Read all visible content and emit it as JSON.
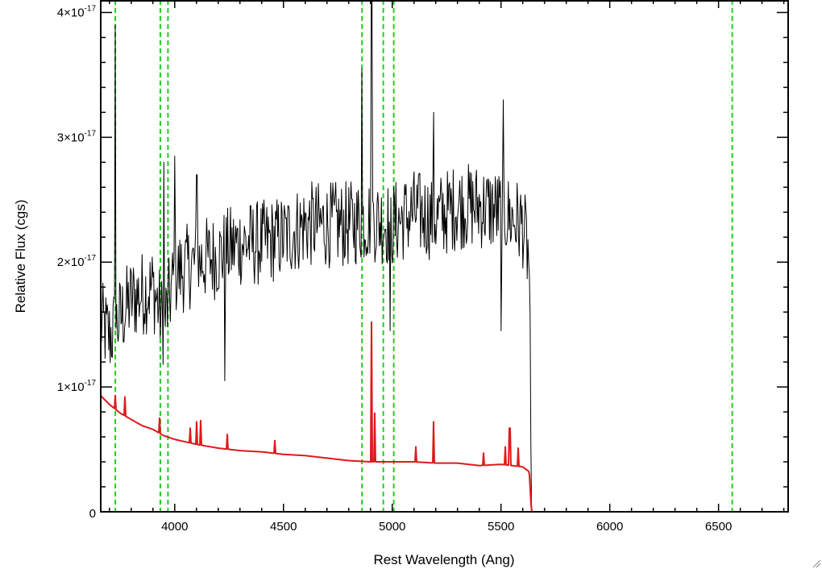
{
  "chart_data": {
    "type": "line",
    "xlabel": "Rest Wavelength (Ang)",
    "ylabel": "Relative Flux (cgs)",
    "xlim": [
      3660,
      6820
    ],
    "ylim": [
      0,
      4.1
    ],
    "y_unit_exponent": "-17",
    "x_ticks": [
      {
        "value": 4000,
        "label": "4000"
      },
      {
        "value": 4500,
        "label": "4500"
      },
      {
        "value": 5000,
        "label": "5000"
      },
      {
        "value": 5500,
        "label": "5500"
      },
      {
        "value": 6000,
        "label": "6000"
      },
      {
        "value": 6500,
        "label": "6500"
      }
    ],
    "y_ticks": [
      {
        "value": 0,
        "label": "0"
      },
      {
        "value": 1,
        "mant": "1",
        "label": "1×10-17"
      },
      {
        "value": 2,
        "mant": "2",
        "label": "2×10-17"
      },
      {
        "value": 3,
        "mant": "3",
        "label": "3×10-17"
      },
      {
        "value": 4,
        "mant": "4",
        "label": "4×10-17"
      }
    ],
    "vlines": [
      3727,
      3934,
      3969,
      4861,
      4959,
      5007,
      6563
    ],
    "series": [
      {
        "role": "spectrum",
        "color": "#000000",
        "x": [
          3665,
          3700,
          3750,
          3800,
          3850,
          3900,
          3950,
          4000,
          4100,
          4200,
          4300,
          4400,
          4500,
          4600,
          4700,
          4800,
          4900,
          5000,
          5100,
          5200,
          5300,
          5400,
          5500,
          5600,
          5630,
          5640,
          6820
        ],
        "y": [
          1.5,
          1.4,
          1.55,
          1.7,
          1.75,
          1.8,
          1.5,
          1.9,
          2.0,
          2.05,
          2.15,
          2.15,
          2.2,
          2.3,
          2.3,
          2.3,
          2.35,
          2.3,
          2.4,
          2.35,
          2.45,
          2.45,
          2.4,
          2.3,
          2.0,
          0.0,
          0.0
        ],
        "noise_amplitude": 0.35,
        "spikes": [
          {
            "x": 3727,
            "y": 3.9
          },
          {
            "x": 3950,
            "y": 2.8
          },
          {
            "x": 4000,
            "y": 2.85
          },
          {
            "x": 4102,
            "y": 2.7
          },
          {
            "x": 4230,
            "y": 1.05
          },
          {
            "x": 4861,
            "y": 3.55
          },
          {
            "x": 4905,
            "y": 4.1
          },
          {
            "x": 4990,
            "y": 1.45
          },
          {
            "x": 5190,
            "y": 3.2
          },
          {
            "x": 5500,
            "y": 1.45
          },
          {
            "x": 5510,
            "y": 3.3
          }
        ]
      },
      {
        "role": "error",
        "color": "#e0191c",
        "x": [
          3660,
          3700,
          3750,
          3800,
          3850,
          3900,
          3950,
          4000,
          4100,
          4200,
          4300,
          4400,
          4500,
          4600,
          4700,
          4800,
          4900,
          5000,
          5100,
          5200,
          5300,
          5400,
          5500,
          5600,
          5630,
          5640,
          6820
        ],
        "y": [
          0.93,
          0.86,
          0.79,
          0.74,
          0.69,
          0.66,
          0.61,
          0.58,
          0.54,
          0.51,
          0.49,
          0.48,
          0.46,
          0.45,
          0.43,
          0.41,
          0.4,
          0.4,
          0.4,
          0.39,
          0.39,
          0.37,
          0.38,
          0.36,
          0.32,
          0.0,
          0.0
        ],
        "spikes": [
          {
            "x": 3727,
            "y": 0.93
          },
          {
            "x": 3770,
            "y": 0.92
          },
          {
            "x": 3930,
            "y": 0.75
          },
          {
            "x": 4070,
            "y": 0.67
          },
          {
            "x": 4102,
            "y": 0.72
          },
          {
            "x": 4120,
            "y": 0.73
          },
          {
            "x": 4240,
            "y": 0.62
          },
          {
            "x": 4460,
            "y": 0.57
          },
          {
            "x": 4905,
            "y": 1.52
          },
          {
            "x": 4920,
            "y": 0.79
          },
          {
            "x": 5110,
            "y": 0.52
          },
          {
            "x": 5190,
            "y": 0.72
          },
          {
            "x": 5420,
            "y": 0.47
          },
          {
            "x": 5520,
            "y": 0.52
          },
          {
            "x": 5540,
            "y": 0.67
          },
          {
            "x": 5580,
            "y": 0.51
          }
        ]
      }
    ],
    "vline_color": "#1ed01e",
    "background": "#ffffff"
  }
}
